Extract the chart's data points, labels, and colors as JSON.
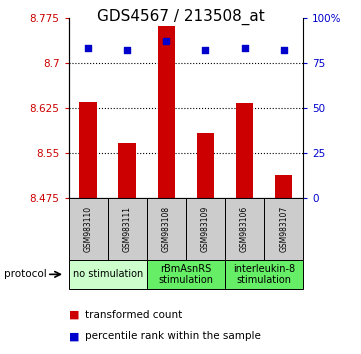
{
  "title": "GDS4567 / 213508_at",
  "samples": [
    "GSM983110",
    "GSM983111",
    "GSM983108",
    "GSM983109",
    "GSM983106",
    "GSM983107"
  ],
  "bar_values": [
    8.635,
    8.567,
    8.762,
    8.583,
    8.633,
    8.513
  ],
  "percentile_values": [
    83,
    82,
    87,
    82,
    83,
    82
  ],
  "bar_bottom": 8.475,
  "ylim_left": [
    8.475,
    8.775
  ],
  "ylim_right": [
    0,
    100
  ],
  "yticks_left": [
    8.475,
    8.55,
    8.625,
    8.7,
    8.775
  ],
  "ytick_labels_left": [
    "8.475",
    "8.55",
    "8.625",
    "8.7",
    "8.775"
  ],
  "yticks_right": [
    0,
    25,
    50,
    75,
    100
  ],
  "ytick_labels_right": [
    "0",
    "25",
    "50",
    "75",
    "100%"
  ],
  "bar_color": "#cc0000",
  "dot_color": "#0000cc",
  "protocol_groups": [
    {
      "label": "no stimulation",
      "span": [
        0,
        2
      ],
      "color": "#ccffcc"
    },
    {
      "label": "rBmAsnRS\nstimulation",
      "span": [
        2,
        4
      ],
      "color": "#66ee66"
    },
    {
      "label": "interleukin-8\nstimulation",
      "span": [
        4,
        6
      ],
      "color": "#66ee66"
    }
  ],
  "legend_items": [
    {
      "color": "#cc0000",
      "label": "transformed count"
    },
    {
      "color": "#0000cc",
      "label": "percentile rank within the sample"
    }
  ],
  "protocol_label": "protocol",
  "sample_box_color": "#cccccc",
  "title_fontsize": 11,
  "tick_fontsize": 7.5,
  "label_fontsize": 7.5,
  "sample_fontsize": 5.5,
  "proto_fontsize": 7
}
